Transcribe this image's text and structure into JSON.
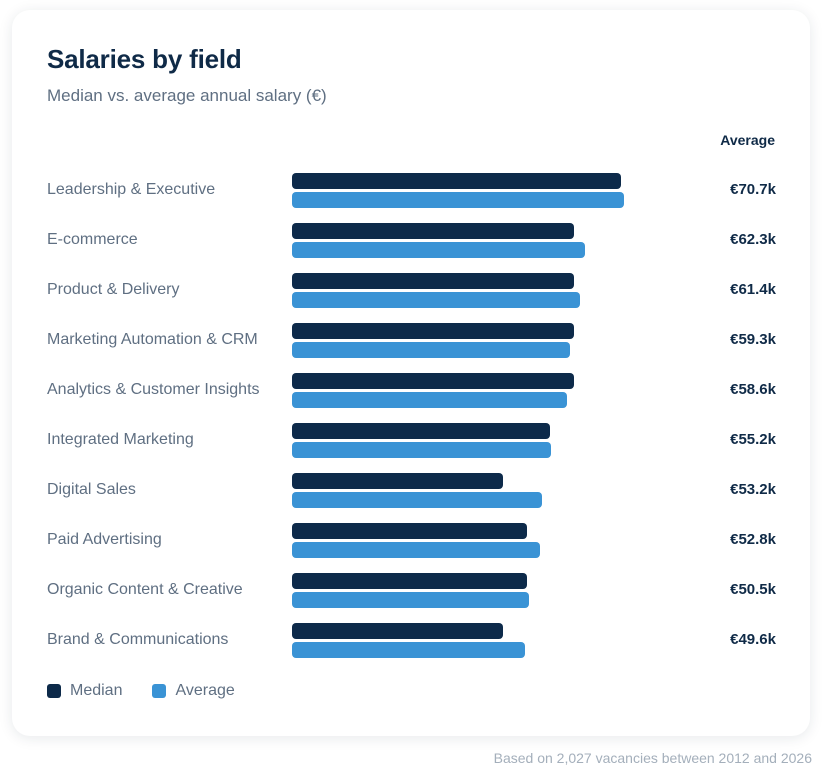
{
  "title": "Salaries by field",
  "subtitle": "Median vs. average annual salary (€)",
  "column_header": "Average",
  "footnote": "Based on 2,027 vacancies between 2012 and 2026",
  "colors": {
    "median": "#0d2a4a",
    "average": "#3a93d5"
  },
  "legend": [
    {
      "label": "Median",
      "color": "#0d2a4a"
    },
    {
      "label": "Average",
      "color": "#3a93d5"
    }
  ],
  "chart_data": {
    "type": "bar",
    "orientation": "horizontal",
    "title": "Salaries by field",
    "subtitle": "Median vs. average annual salary (€)",
    "xlim": [
      0,
      70.7
    ],
    "unit": "k €",
    "grid": false,
    "legend_position": "bottom-left",
    "categories": [
      "Leadership & Executive",
      "E-commerce",
      "Product & Delivery",
      "Marketing Automation & CRM",
      "Analytics & Customer Insights",
      "Integrated Marketing",
      "Digital Sales",
      "Paid Advertising",
      "Organic Content & Creative",
      "Brand & Communications"
    ],
    "series": [
      {
        "name": "Median",
        "values": [
          70.0,
          60.0,
          60.0,
          60.0,
          60.0,
          55.0,
          45.0,
          50.0,
          50.0,
          45.0
        ]
      },
      {
        "name": "Average",
        "values": [
          70.7,
          62.3,
          61.4,
          59.3,
          58.6,
          55.2,
          53.2,
          52.8,
          50.5,
          49.6
        ]
      }
    ],
    "value_labels": [
      "€70.7k",
      "€62.3k",
      "€61.4k",
      "€59.3k",
      "€58.6k",
      "€55.2k",
      "€53.2k",
      "€52.8k",
      "€50.5k",
      "€49.6k"
    ]
  }
}
